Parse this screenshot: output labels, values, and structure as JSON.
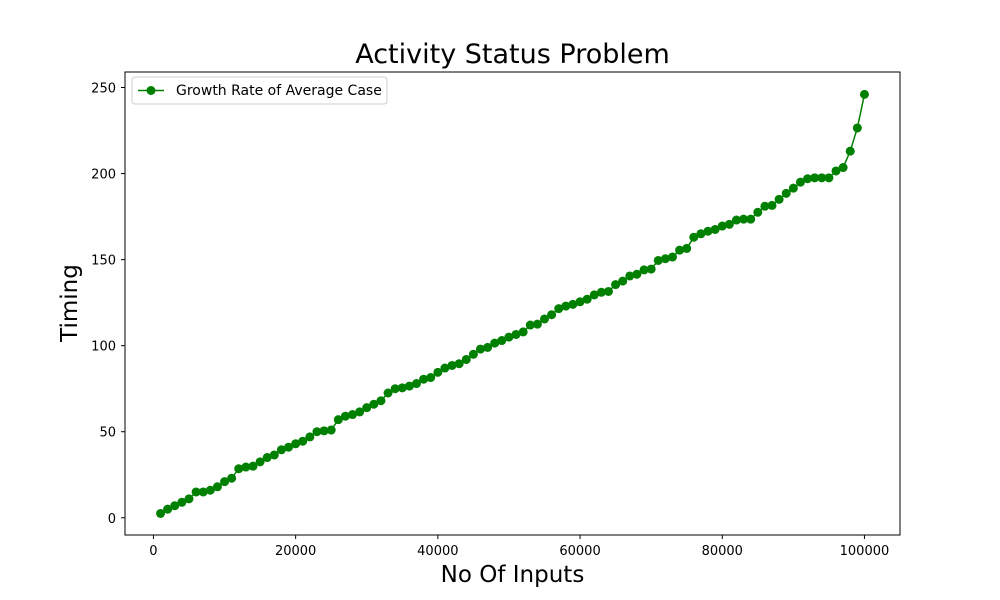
{
  "chart_data": {
    "type": "line",
    "title": "Activity Status Problem",
    "xlabel": "No Of Inputs",
    "ylabel": "Timing",
    "xlim": [
      -4000,
      105000
    ],
    "ylim": [
      -10,
      259
    ],
    "xticks": [
      0,
      20000,
      40000,
      60000,
      80000,
      100000
    ],
    "yticks": [
      0,
      50,
      100,
      150,
      200,
      250
    ],
    "grid": false,
    "legend_position": "top-left",
    "series": [
      {
        "name": "Growth Rate of Average Case",
        "color": "#008000",
        "marker": "circle",
        "x": [
          1000,
          2000,
          3000,
          4000,
          5000,
          6000,
          7000,
          8000,
          9000,
          10000,
          11000,
          12000,
          13000,
          14000,
          15000,
          16000,
          17000,
          18000,
          19000,
          20000,
          21000,
          22000,
          23000,
          24000,
          25000,
          26000,
          27000,
          28000,
          29000,
          30000,
          31000,
          32000,
          33000,
          34000,
          35000,
          36000,
          37000,
          38000,
          39000,
          40000,
          41000,
          42000,
          43000,
          44000,
          45000,
          46000,
          47000,
          48000,
          49000,
          50000,
          51000,
          52000,
          53000,
          54000,
          55000,
          56000,
          57000,
          58000,
          59000,
          60000,
          61000,
          62000,
          63000,
          64000,
          65000,
          66000,
          67000,
          68000,
          69000,
          70000,
          71000,
          72000,
          73000,
          74000,
          75000,
          76000,
          77000,
          78000,
          79000,
          80000,
          81000,
          82000,
          83000,
          84000,
          85000,
          86000,
          87000,
          88000,
          89000,
          90000,
          91000,
          92000,
          93000,
          94000,
          95000,
          96000,
          97000,
          98000,
          99000,
          100000
        ],
        "y": [
          2.5,
          5,
          7,
          9,
          11,
          15,
          15,
          16,
          18,
          21,
          23,
          28.5,
          29.5,
          30,
          32.5,
          35,
          36.5,
          39.5,
          41,
          43,
          44.5,
          47,
          50,
          50.5,
          51,
          57,
          59,
          60,
          61.5,
          64,
          66,
          68,
          72.5,
          75,
          75.5,
          76.5,
          78,
          80.5,
          81.5,
          84.5,
          87,
          88.5,
          89.5,
          92,
          95,
          98,
          99,
          101.5,
          103,
          105,
          106.5,
          108,
          112,
          112.5,
          115.5,
          118,
          121.5,
          123,
          124,
          125.5,
          127,
          129.5,
          131,
          131.5,
          135.5,
          137.5,
          140.5,
          141.5,
          144,
          144.5,
          149.5,
          150.5,
          151.5,
          155.5,
          156.5,
          163,
          165,
          166.5,
          167.5,
          169.5,
          170.5,
          173,
          173.5,
          173.5,
          177.5,
          181,
          181.5,
          185,
          188.5,
          191.5,
          195,
          197,
          197.5,
          197.5,
          197.5,
          201.5,
          203.5,
          213,
          226.5,
          246
        ]
      }
    ]
  }
}
